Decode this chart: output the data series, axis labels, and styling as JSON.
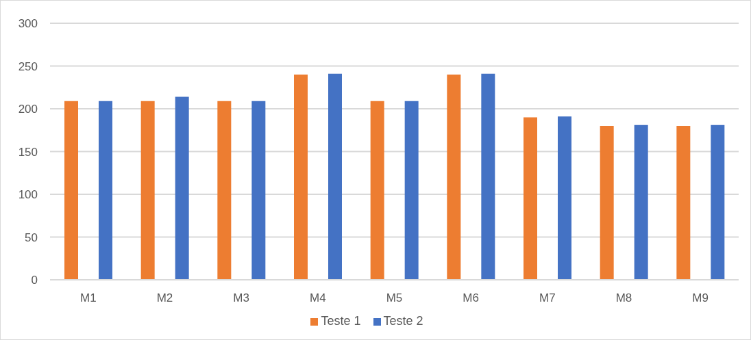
{
  "chart_data": {
    "type": "bar",
    "categories": [
      "M1",
      "M2",
      "M3",
      "M4",
      "M5",
      "M6",
      "M7",
      "M8",
      "M9"
    ],
    "series": [
      {
        "name": "Teste 1",
        "color": "#ed7d31",
        "values": [
          209,
          209,
          209,
          240,
          209,
          240,
          190,
          180,
          180
        ]
      },
      {
        "name": "Teste 2",
        "color": "#4472c4",
        "values": [
          209,
          214,
          209,
          241,
          209,
          241,
          191,
          181,
          181
        ]
      }
    ],
    "ylim": [
      0,
      300
    ],
    "yticks": [
      0,
      50,
      100,
      150,
      200,
      250,
      300
    ],
    "grid": "y",
    "legend": "bottom"
  }
}
